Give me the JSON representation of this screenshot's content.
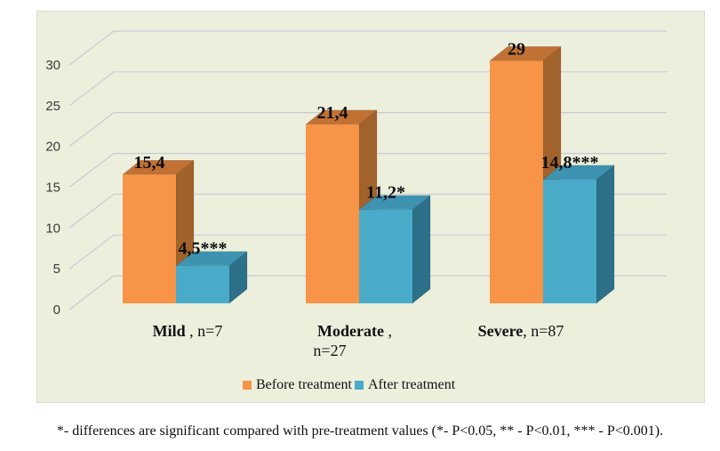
{
  "chart_data": {
    "type": "bar",
    "variant": "3d-grouped",
    "title": "",
    "xlabel": "",
    "ylabel": "",
    "categories": [
      "Mild , n=7",
      "Moderate , n=27",
      "Severe, n=87"
    ],
    "category_labels": [
      {
        "bold": "Mild",
        "rest": " , n=7",
        "line2": ""
      },
      {
        "bold": "Moderate",
        "rest": " ,",
        "line2": "n=27"
      },
      {
        "bold": "Severe",
        "rest": ", n=87",
        "line2": ""
      }
    ],
    "series": [
      {
        "name": "Before treatment",
        "color": "#F79447",
        "color_top": "#C17134",
        "color_side": "#A2622B",
        "values": [
          15.4,
          21.4,
          29
        ],
        "value_labels": [
          "15,4",
          "21,4",
          "29"
        ]
      },
      {
        "name": "After treatment",
        "color": "#4AABC8",
        "color_top": "#3E93B1",
        "color_side": "#2D7089",
        "values": [
          4.5,
          11.2,
          14.8
        ],
        "value_labels": [
          "4,5***",
          "11,2*",
          "14,8***"
        ]
      }
    ],
    "y_axis": {
      "min": 0,
      "max": 30,
      "step": 5,
      "ticks": [
        0,
        5,
        10,
        15,
        20,
        25,
        30
      ]
    },
    "legend": {
      "position": "bottom",
      "entries": [
        "Before treatment",
        "After treatment"
      ]
    },
    "plot": {
      "background": "#ECEFDC",
      "border_color": "#D8DACF",
      "gridline_color": "#C7CBD6",
      "tick_label_color": "#3a3a3a",
      "text_color": "#111111",
      "grid": true
    },
    "footnote": "*- differences are significant compared with pre-treatment values (*- P<0.05, ** - P<0.01, *** - P<0.001)."
  }
}
